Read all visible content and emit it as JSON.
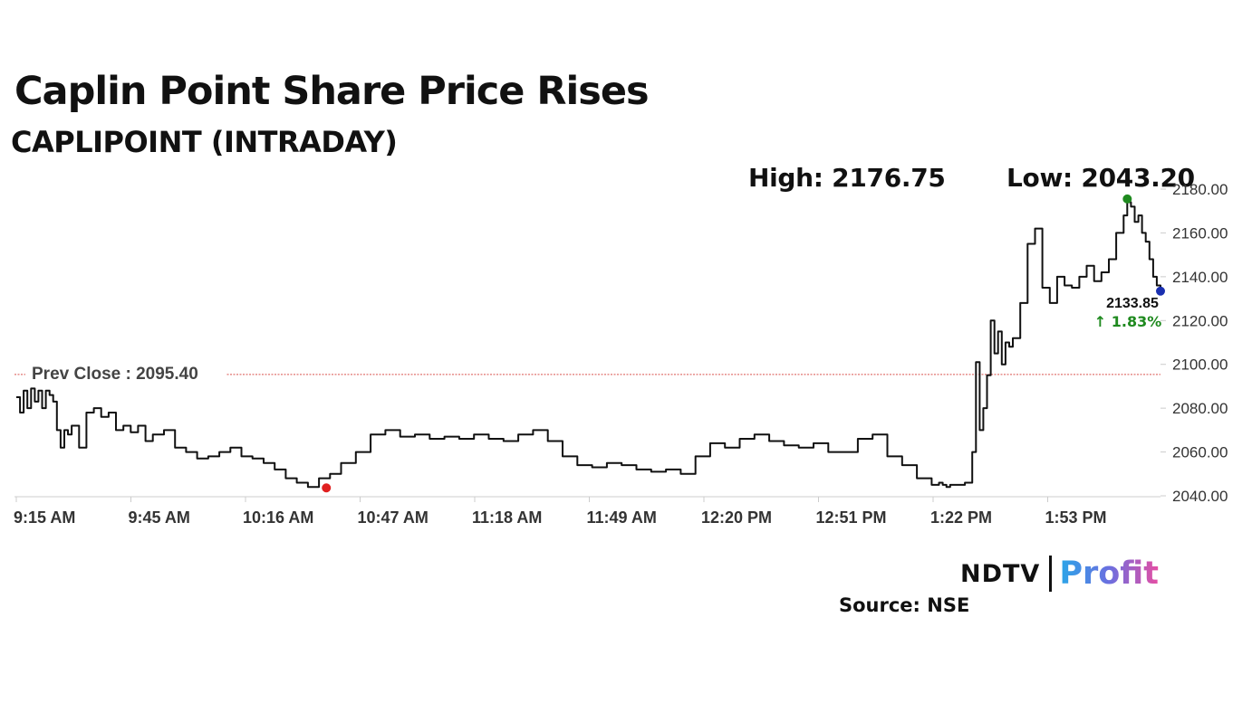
{
  "header": {
    "title": "Caplin Point Share Price Rises",
    "subtitle": "CAPLIPOINT (INTRADAY)",
    "high_label": "High: 2176.75",
    "low_label": "Low: 2043.20"
  },
  "footer": {
    "logo_left": "NDTV",
    "logo_right": "Profit",
    "source": "Source: NSE"
  },
  "colors": {
    "line": "#111111",
    "prev_close": "#d9534f",
    "high_marker": "#1f8a1f",
    "low_marker": "#e02020",
    "last_marker": "#1a2fb0",
    "change_up": "#1f8a1f",
    "axis": "#cccccc"
  },
  "chart_data": {
    "type": "line",
    "title": "CAPLIPOINT (INTRADAY)",
    "x_tick_labels": [
      "9:15 AM",
      "9:45 AM",
      "10:16 AM",
      "10:47 AM",
      "11:18 AM",
      "11:49 AM",
      "12:20 PM",
      "12:51 PM",
      "1:22 PM",
      "1:53 PM"
    ],
    "y_tick_labels": [
      "2180.00",
      "2160.00",
      "2140.00",
      "2120.00",
      "2100.00",
      "2080.00",
      "2060.00",
      "2040.00"
    ],
    "ylim": [
      2040,
      2180
    ],
    "x_minutes_range": [
      0,
      310
    ],
    "prev_close": 2095.4,
    "prev_close_label": "Prev Close : 2095.40",
    "last_value_label": "2133.85",
    "change_label": "↑ 1.83%",
    "series": [
      {
        "x": [
          0,
          1,
          2,
          3,
          4,
          5,
          6,
          7,
          8,
          9,
          10,
          11,
          12,
          13,
          14,
          15,
          17,
          19,
          21,
          23,
          25,
          27,
          29,
          31,
          33,
          35,
          37,
          40,
          43,
          46,
          49,
          52,
          55,
          58,
          61,
          64,
          67,
          70,
          73,
          76,
          79,
          82,
          85,
          88,
          92,
          96,
          100,
          104,
          108,
          112,
          116,
          120,
          124,
          128,
          132,
          136,
          140,
          144,
          148,
          152,
          156,
          160,
          164,
          168,
          172,
          176,
          180,
          184,
          188,
          192,
          196,
          200,
          204,
          208,
          212,
          216,
          220,
          224,
          228,
          232,
          236,
          240,
          244,
          248,
          250,
          251,
          252,
          253,
          254,
          255,
          256,
          257,
          258,
          259,
          260,
          261,
          262,
          263,
          264,
          265,
          266,
          267,
          268,
          269,
          270,
          272,
          274,
          276,
          278,
          280,
          282,
          284,
          286,
          288,
          290,
          292,
          294,
          296,
          298,
          300,
          301,
          302,
          303,
          304,
          305,
          306,
          307,
          308,
          309,
          310
        ],
        "y": [
          2085,
          2078,
          2088,
          2080,
          2089,
          2083,
          2088,
          2080,
          2088,
          2086,
          2083,
          2070,
          2062,
          2070,
          2068,
          2072,
          2062,
          2078,
          2080,
          2076,
          2078,
          2070,
          2072,
          2069,
          2072,
          2065,
          2068,
          2070,
          2062,
          2060,
          2057,
          2058,
          2060,
          2062,
          2058,
          2057,
          2055,
          2052,
          2048,
          2046,
          2044,
          2048,
          2050,
          2055,
          2060,
          2068,
          2070,
          2067,
          2068,
          2066,
          2067,
          2066,
          2068,
          2066,
          2065,
          2068,
          2070,
          2065,
          2058,
          2054,
          2053,
          2055,
          2054,
          2052,
          2051,
          2052,
          2050,
          2058,
          2064,
          2062,
          2066,
          2068,
          2065,
          2063,
          2062,
          2064,
          2060,
          2060,
          2066,
          2068,
          2058,
          2054,
          2048,
          2045,
          2046,
          2045,
          2044,
          2045,
          2045,
          2045,
          2045,
          2046,
          2046,
          2060,
          2101,
          2070,
          2080,
          2095,
          2120,
          2105,
          2115,
          2100,
          2110,
          2108,
          2112,
          2128,
          2155,
          2162,
          2135,
          2128,
          2140,
          2136,
          2135,
          2140,
          2145,
          2138,
          2142,
          2148,
          2160,
          2168,
          2174,
          2172,
          2165,
          2168,
          2160,
          2156,
          2148,
          2140,
          2136,
          2133.85
        ]
      }
    ],
    "high_point": {
      "x": 301,
      "y": 2176.75
    },
    "low_point": {
      "x": 84,
      "y": 2043.2
    }
  }
}
